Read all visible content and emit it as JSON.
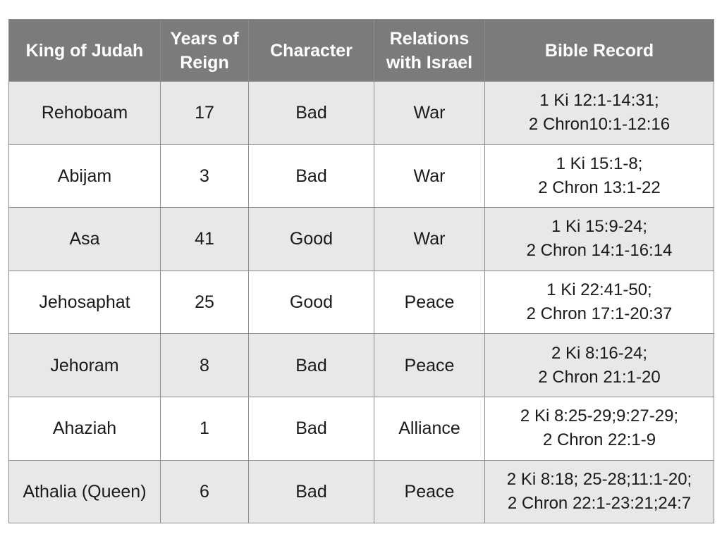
{
  "table": {
    "headers": [
      [
        "King of Judah"
      ],
      [
        "Years of",
        "Reign"
      ],
      [
        "Character"
      ],
      [
        "Relations",
        "with Israel"
      ],
      [
        "Bible Record"
      ]
    ],
    "rows": [
      {
        "king": "Rehoboam",
        "years": "17",
        "character": "Bad",
        "relations": "War",
        "record": [
          "1 Ki 12:1-14:31;",
          "2 Chron10:1-12:16"
        ]
      },
      {
        "king": "Abijam",
        "years": "3",
        "character": "Bad",
        "relations": "War",
        "record": [
          "1 Ki 15:1-8;",
          "2 Chron 13:1-22"
        ]
      },
      {
        "king": "Asa",
        "years": "41",
        "character": "Good",
        "relations": "War",
        "record": [
          "1 Ki 15:9-24;",
          "2 Chron 14:1-16:14"
        ]
      },
      {
        "king": "Jehosaphat",
        "years": "25",
        "character": "Good",
        "relations": "Peace",
        "record": [
          "1 Ki 22:41-50;",
          "2 Chron 17:1-20:37"
        ]
      },
      {
        "king": "Jehoram",
        "years": "8",
        "character": "Bad",
        "relations": "Peace",
        "record": [
          "2 Ki 8:16-24;",
          "2 Chron 21:1-20"
        ]
      },
      {
        "king": "Ahaziah",
        "years": "1",
        "character": "Bad",
        "relations": "Alliance",
        "record": [
          "2 Ki 8:25-29;9:27-29;",
          "2 Chron 22:1-9"
        ]
      },
      {
        "king": "Athalia (Queen)",
        "years": "6",
        "character": "Bad",
        "relations": "Peace",
        "record": [
          "2 Ki 8:18; 25-28;11:1-20;",
          "2 Chron 22:1-23:21;24:7"
        ]
      }
    ]
  }
}
